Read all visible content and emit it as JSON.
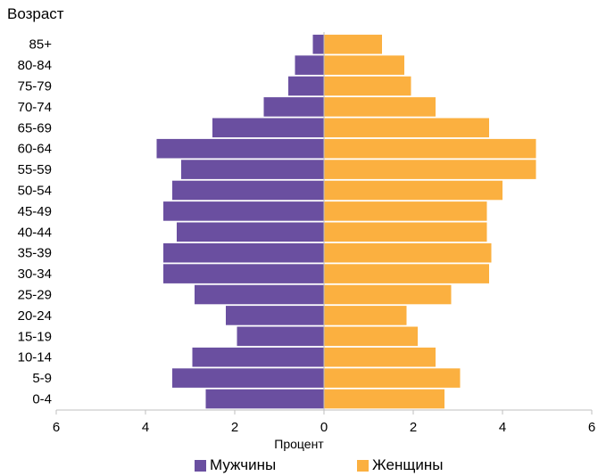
{
  "chart_data": {
    "type": "bar",
    "orientation": "horizontal-population-pyramid",
    "ylabel": "Возраст",
    "xlabel": "Процент",
    "categories": [
      "85+",
      "80-84",
      "75-79",
      "70-74",
      "65-69",
      "60-64",
      "55-59",
      "50-54",
      "45-49",
      "40-44",
      "35-39",
      "30-34",
      "25-29",
      "20-24",
      "15-19",
      "10-14",
      "5-9",
      "0-4"
    ],
    "series": [
      {
        "name": "Мужчины",
        "color": "#6a4fa0",
        "side": "left",
        "values": [
          0.25,
          0.65,
          0.8,
          1.35,
          2.5,
          3.75,
          3.2,
          3.4,
          3.6,
          3.3,
          3.6,
          3.6,
          2.9,
          2.2,
          1.95,
          2.95,
          3.4,
          2.65
        ]
      },
      {
        "name": "Женщины",
        "color": "#fbb040",
        "side": "right",
        "values": [
          1.3,
          1.8,
          1.95,
          2.5,
          3.7,
          4.75,
          4.75,
          4.0,
          3.65,
          3.65,
          3.75,
          3.7,
          2.85,
          1.85,
          2.1,
          2.5,
          3.05,
          2.7
        ]
      }
    ],
    "xlim": [
      -6,
      6
    ],
    "xticks": [
      -6,
      -4,
      -2,
      0,
      2,
      4,
      6
    ],
    "xtick_labels": [
      "6",
      "4",
      "2",
      "0",
      "2",
      "4",
      "6"
    ],
    "grid": false,
    "legend_position": "bottom"
  }
}
